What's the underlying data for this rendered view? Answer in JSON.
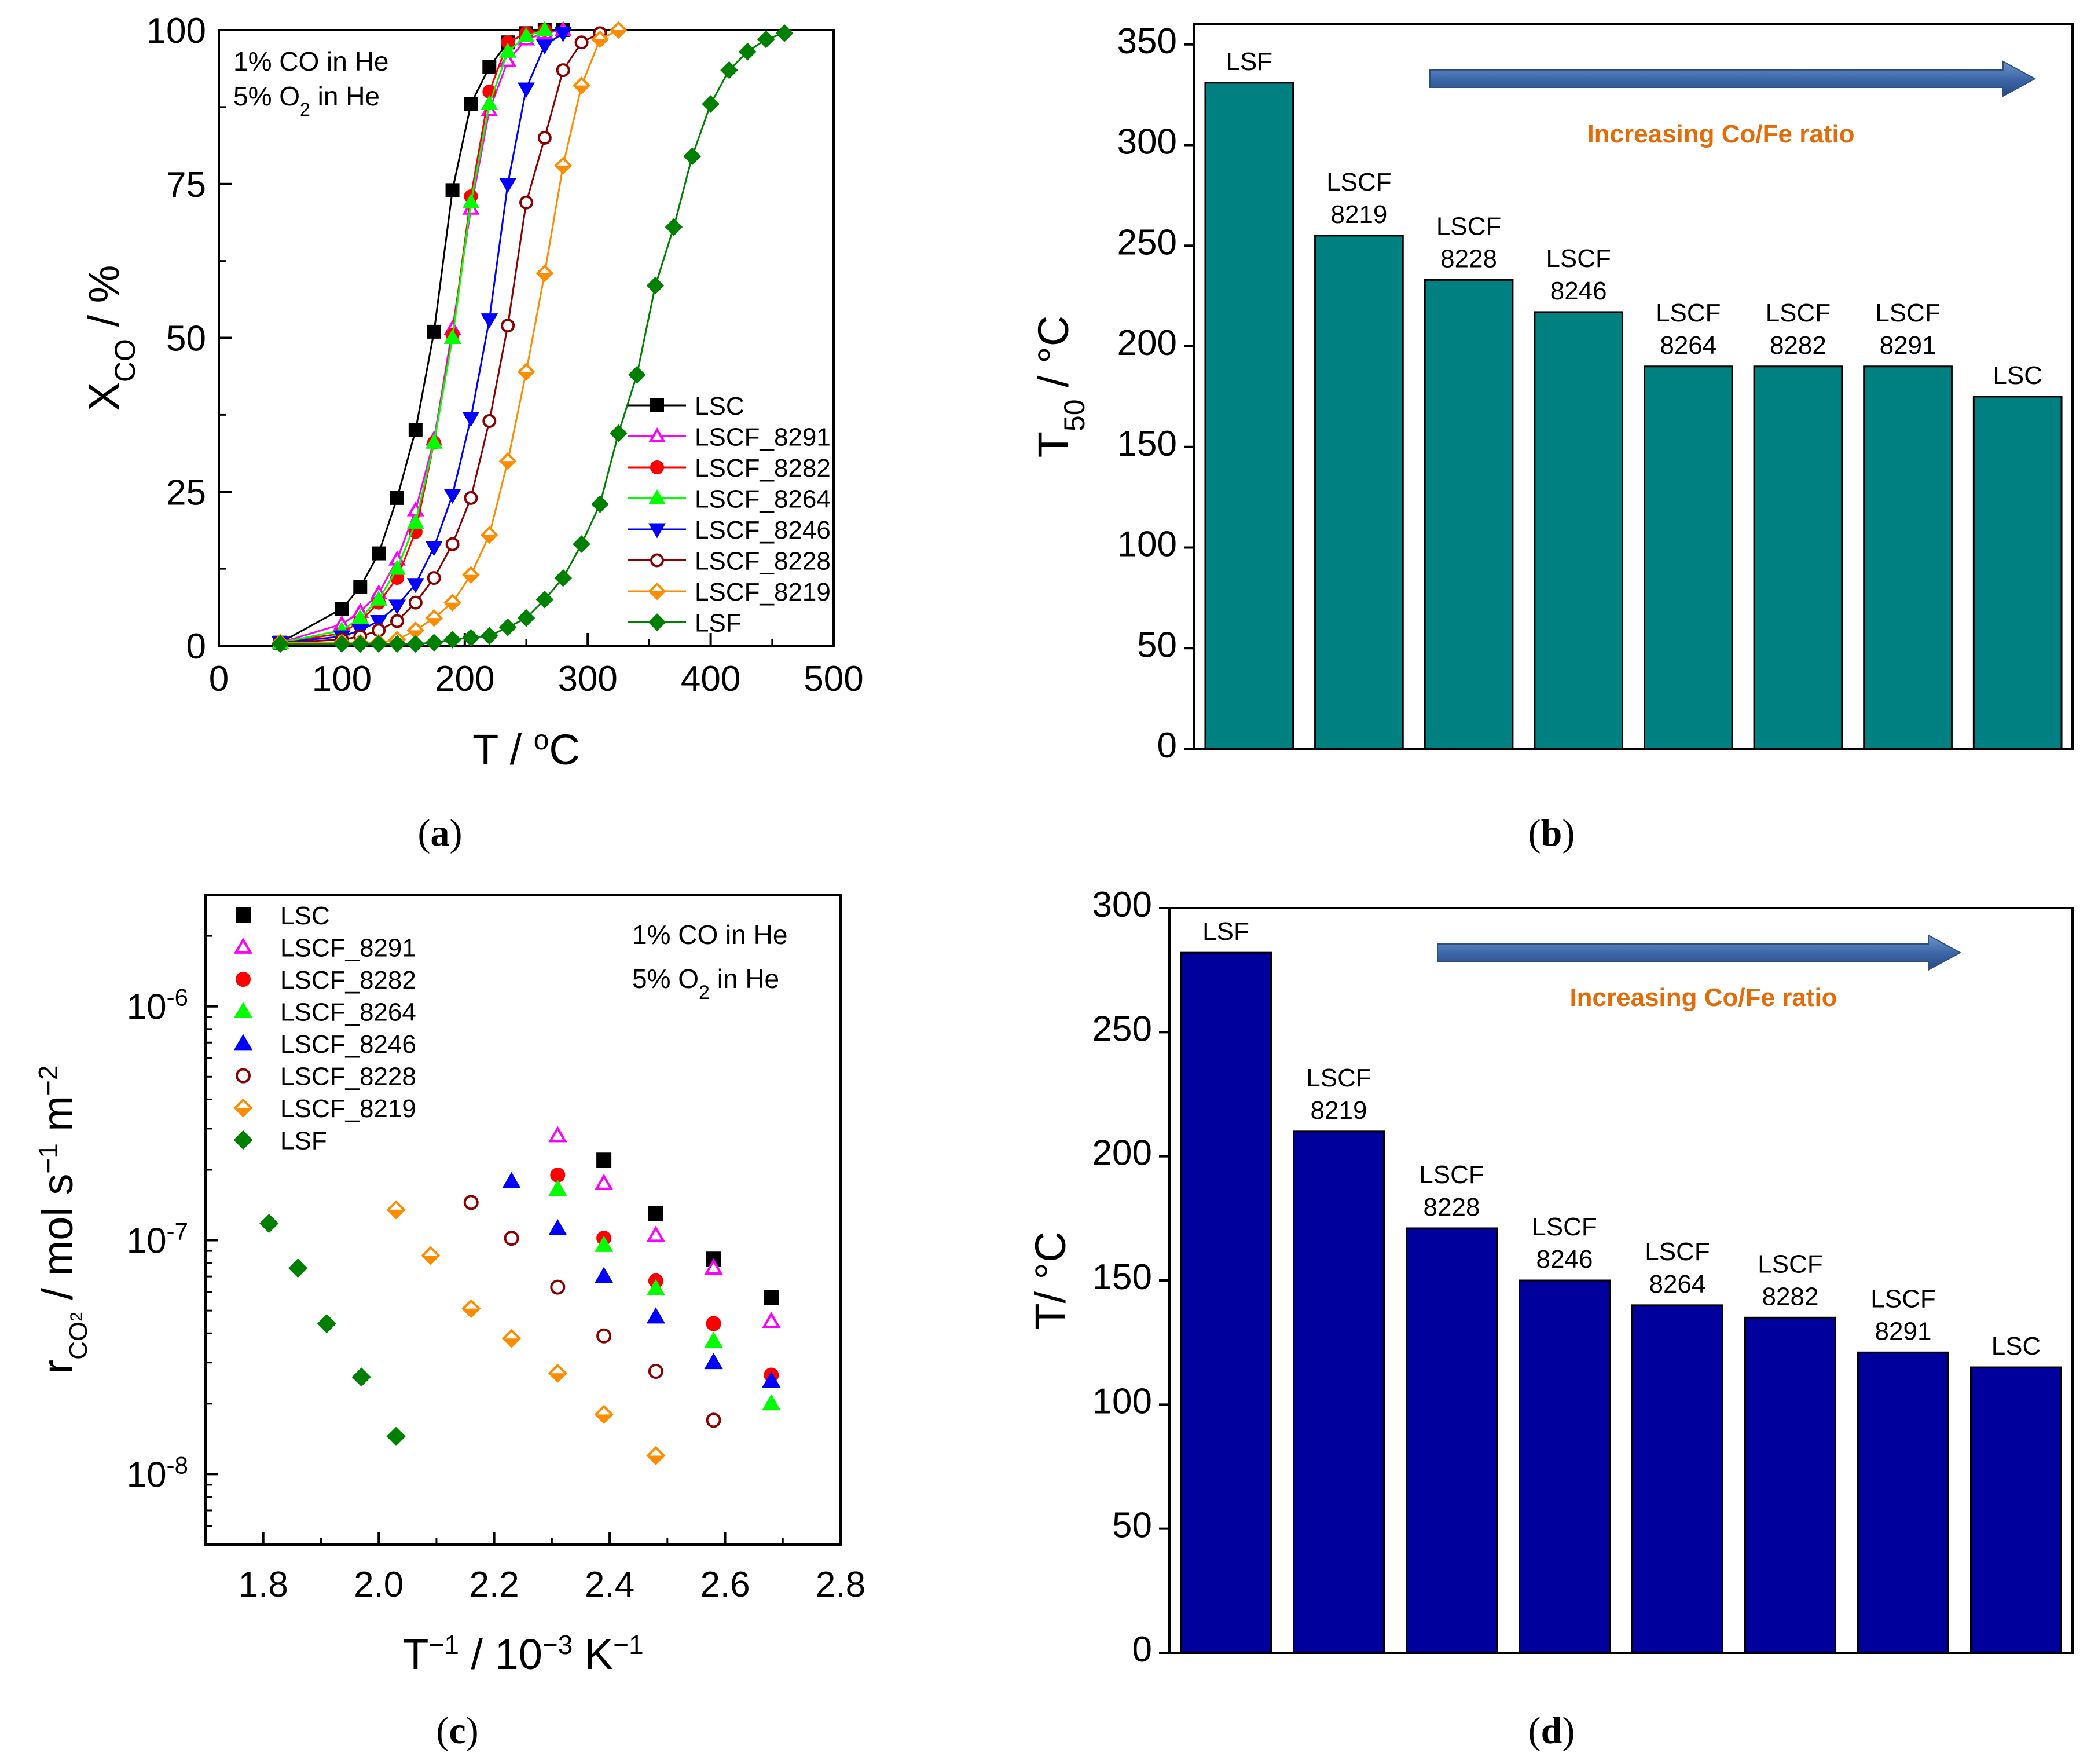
{
  "panels": {
    "a": {
      "label": "(a)",
      "letter": "a"
    },
    "b": {
      "label": "(b)",
      "letter": "b"
    },
    "c": {
      "label": "(c)",
      "letter": "c"
    },
    "d": {
      "label": "(d)",
      "letter": "d"
    }
  },
  "chart_data": [
    {
      "id": "a",
      "type": "line",
      "xlabel": "T / °C",
      "ylabel": "X_CO / %",
      "xlim": [
        0,
        500
      ],
      "ylim": [
        0,
        100
      ],
      "xticks": [
        0,
        100,
        200,
        300,
        400,
        500
      ],
      "yticks": [
        0,
        25,
        50,
        75,
        100
      ],
      "annotations": [
        "1% CO in He",
        "5% O2 in He"
      ],
      "series": [
        {
          "name": "LSC",
          "color": "#000000",
          "marker": "square",
          "filled": true,
          "x": [
            50,
            100,
            115,
            130,
            145,
            160,
            175,
            190,
            205,
            220,
            235,
            250,
            265,
            280
          ],
          "y": [
            0.5,
            6,
            9.5,
            15,
            24,
            35,
            51,
            74,
            88,
            94,
            98,
            99.5,
            100,
            100
          ]
        },
        {
          "name": "LSCF_8291",
          "color": "#ff00ff",
          "marker": "triangle-up",
          "filled": false,
          "x": [
            50,
            100,
            115,
            130,
            145,
            160,
            175,
            190,
            205,
            220,
            235,
            250,
            265,
            280
          ],
          "y": [
            0.5,
            3.5,
            5.5,
            8.5,
            14,
            22,
            33.5,
            51.5,
            71,
            87,
            95,
            98.5,
            99.5,
            100
          ]
        },
        {
          "name": "LSCF_8282",
          "color": "#ff0000",
          "marker": "circle",
          "filled": true,
          "x": [
            50,
            100,
            115,
            130,
            145,
            160,
            175,
            190,
            205,
            220,
            235,
            250,
            265
          ],
          "y": [
            0.5,
            2,
            4,
            7,
            11,
            18.5,
            33,
            50.5,
            73,
            90,
            98,
            99.5,
            100
          ]
        },
        {
          "name": "LSCF_8264",
          "color": "#00ff00",
          "marker": "triangle-up",
          "filled": true,
          "x": [
            50,
            100,
            115,
            130,
            145,
            160,
            175,
            190,
            205,
            220,
            235,
            250,
            265
          ],
          "y": [
            0.5,
            2.5,
            4.5,
            7.5,
            12.5,
            20,
            33,
            50,
            72,
            88,
            96.5,
            99,
            100
          ]
        },
        {
          "name": "LSCF_8246",
          "color": "#0000ff",
          "marker": "triangle-down",
          "filled": true,
          "x": [
            50,
            100,
            115,
            130,
            145,
            160,
            175,
            190,
            205,
            220,
            235,
            250,
            265,
            280
          ],
          "y": [
            0.5,
            1.5,
            2.5,
            4,
            6.5,
            10,
            16,
            24.5,
            37,
            53,
            75,
            90.5,
            97.5,
            99.5
          ]
        },
        {
          "name": "LSCF_8228",
          "color": "#8b0000",
          "marker": "circle",
          "filled": false,
          "x": [
            50,
            100,
            115,
            130,
            145,
            160,
            175,
            190,
            205,
            220,
            235,
            250,
            265,
            280,
            295,
            310
          ],
          "y": [
            0.5,
            1,
            1.5,
            2.5,
            4,
            7,
            11,
            16.5,
            24,
            36.5,
            52,
            72,
            82.5,
            93.5,
            98,
            99.5
          ]
        },
        {
          "name": "LSCF_8219",
          "color": "#ff8c00",
          "marker": "diamond-half",
          "filled": false,
          "x": [
            50,
            100,
            115,
            130,
            145,
            160,
            175,
            190,
            205,
            220,
            235,
            250,
            265,
            280,
            295,
            310,
            325
          ],
          "y": [
            0.5,
            0.5,
            0.5,
            0.5,
            1,
            2.5,
            4.5,
            7,
            11.5,
            18,
            30,
            44.5,
            60.5,
            78,
            91,
            98.5,
            100
          ]
        },
        {
          "name": "LSF",
          "color": "#008000",
          "marker": "diamond",
          "filled": true,
          "x": [
            50,
            100,
            115,
            130,
            145,
            160,
            175,
            190,
            205,
            220,
            235,
            250,
            265,
            280,
            295,
            310,
            325,
            340,
            355,
            370,
            385,
            400,
            415,
            430,
            445,
            460
          ],
          "y": [
            0.3,
            0.3,
            0.3,
            0.3,
            0.3,
            0.3,
            0.5,
            1,
            1.3,
            1.6,
            3,
            4.5,
            7.5,
            11,
            16.5,
            23,
            34.5,
            44,
            58.5,
            68,
            79.5,
            88,
            93.5,
            96.5,
            98.5,
            99.5
          ]
        }
      ]
    },
    {
      "id": "b",
      "type": "bar",
      "ylabel": "T_50 / °C",
      "ylim": [
        0,
        360
      ],
      "yticks": [
        0,
        50,
        100,
        150,
        200,
        250,
        300,
        350
      ],
      "bar_color": "#008080",
      "categories": [
        [
          "LSF"
        ],
        [
          "LSCF",
          "8219"
        ],
        [
          "LSCF",
          "8228"
        ],
        [
          "LSCF",
          "8246"
        ],
        [
          "LSCF",
          "8264"
        ],
        [
          "LSCF",
          "8282"
        ],
        [
          "LSCF",
          "8291"
        ],
        [
          "LSC"
        ]
      ],
      "values": [
        331,
        255,
        233,
        217,
        190,
        190,
        190,
        175
      ],
      "arrow_text": "Increasing Co/Fe ratio"
    },
    {
      "id": "c",
      "type": "scatter",
      "xlabel": "T^-1 / 10^-3 K^-1",
      "ylabel": "r_CO2 / mol s^-1 m^-2",
      "xlim": [
        1.7,
        2.8
      ],
      "ylim_log": [
        5e-09,
        3e-06
      ],
      "xticks": [
        1.8,
        2.0,
        2.2,
        2.4,
        2.6,
        2.8
      ],
      "yticks_log": [
        {
          "exp": -8,
          "text": "10"
        },
        {
          "exp": -7,
          "text": "10"
        },
        {
          "exp": -6,
          "text": "10"
        }
      ],
      "annotations": [
        "1% CO in He",
        "5% O2 in He"
      ],
      "series": [
        {
          "name": "LSC",
          "color": "#000000",
          "marker": "square",
          "filled": true,
          "x": [
            2.39,
            2.48,
            2.58,
            2.68
          ],
          "y": [
            2.2e-07,
            1.3e-07,
            8.3e-08,
            5.7e-08
          ]
        },
        {
          "name": "LSCF_8291",
          "color": "#ff00ff",
          "marker": "triangle-up",
          "filled": false,
          "x": [
            2.31,
            2.39,
            2.48,
            2.58,
            2.68
          ],
          "y": [
            2.8e-07,
            1.75e-07,
            1.05e-07,
            7.6e-08,
            4.5e-08
          ]
        },
        {
          "name": "LSCF_8282",
          "color": "#ff0000",
          "marker": "circle",
          "filled": true,
          "x": [
            2.31,
            2.39,
            2.48,
            2.58,
            2.68
          ],
          "y": [
            1.9e-07,
            1.02e-07,
            6.7e-08,
            4.4e-08,
            2.65e-08
          ]
        },
        {
          "name": "LSCF_8264",
          "color": "#00ff00",
          "marker": "triangle-up",
          "filled": true,
          "x": [
            2.31,
            2.39,
            2.48,
            2.58,
            2.68
          ],
          "y": [
            1.65e-07,
            9.5e-08,
            6.2e-08,
            3.7e-08,
            2e-08
          ]
        },
        {
          "name": "LSCF_8246",
          "color": "#0000ff",
          "marker": "triangle-up",
          "filled": true,
          "x": [
            2.23,
            2.31,
            2.39,
            2.48,
            2.58,
            2.68
          ],
          "y": [
            1.78e-07,
            1.12e-07,
            7e-08,
            4.7e-08,
            3e-08,
            2.5e-08
          ]
        },
        {
          "name": "LSCF_8228",
          "color": "#8b0000",
          "marker": "circle",
          "filled": false,
          "x": [
            2.16,
            2.23,
            2.31,
            2.39,
            2.48,
            2.58
          ],
          "y": [
            1.45e-07,
            1.02e-07,
            6.3e-08,
            3.9e-08,
            2.75e-08,
            1.7e-08
          ]
        },
        {
          "name": "LSCF_8219",
          "color": "#ff8c00",
          "marker": "diamond-half",
          "filled": false,
          "x": [
            2.03,
            2.09,
            2.16,
            2.23,
            2.31,
            2.39,
            2.48
          ],
          "y": [
            1.35e-07,
            8.6e-08,
            5.1e-08,
            3.8e-08,
            2.7e-08,
            1.8e-08,
            1.2e-08
          ]
        },
        {
          "name": "LSF",
          "color": "#008000",
          "marker": "diamond",
          "filled": true,
          "x": [
            1.81,
            1.86,
            1.91,
            1.97,
            2.03
          ],
          "y": [
            1.18e-07,
            7.6e-08,
            4.4e-08,
            2.6e-08,
            1.45e-08
          ]
        }
      ]
    },
    {
      "id": "d",
      "type": "bar",
      "ylabel": "T/ °C",
      "ylim": [
        0,
        300
      ],
      "yticks": [
        0,
        50,
        100,
        150,
        200,
        250,
        300
      ],
      "bar_color": "#00009c",
      "categories": [
        [
          "LSF"
        ],
        [
          "LSCF",
          "8219"
        ],
        [
          "LSCF",
          "8228"
        ],
        [
          "LSCF",
          "8246"
        ],
        [
          "LSCF",
          "8264"
        ],
        [
          "LSCF",
          "8282"
        ],
        [
          "LSCF",
          "8291"
        ],
        [
          "LSC"
        ]
      ],
      "values": [
        282,
        210,
        171,
        150,
        140,
        135,
        121,
        115
      ],
      "arrow_text": "Increasing Co/Fe ratio"
    }
  ]
}
